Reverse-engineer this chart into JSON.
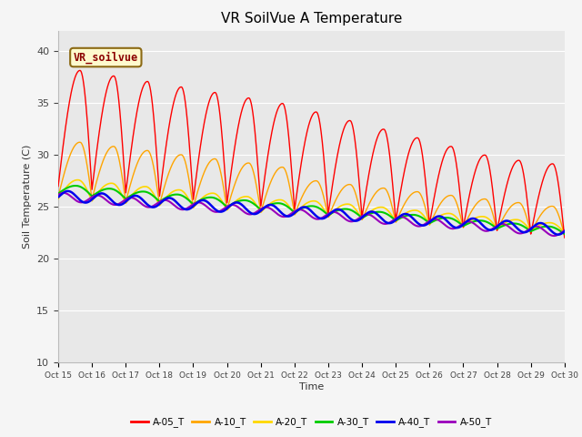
{
  "title": "VR SoilVue A Temperature",
  "ylabel": "Soil Temperature (C)",
  "xlabel": "Time",
  "ylim": [
    10,
    42
  ],
  "yticks": [
    10,
    15,
    20,
    25,
    30,
    35,
    40
  ],
  "annotation_text": "VR_soilvue",
  "annotation_color": "#8B0000",
  "annotation_bg": "#FFFACD",
  "annotation_border": "#8B6914",
  "fig_facecolor": "#F5F5F5",
  "axes_facecolor": "#E8E8E8",
  "colors": {
    "A-05_T": "#FF0000",
    "A-10_T": "#FFA500",
    "A-20_T": "#FFD700",
    "A-30_T": "#00CC00",
    "A-40_T": "#0000EE",
    "A-50_T": "#9900BB"
  },
  "linewidths": {
    "A-05_T": 1.0,
    "A-10_T": 1.0,
    "A-20_T": 1.2,
    "A-30_T": 1.5,
    "A-40_T": 1.8,
    "A-50_T": 1.5
  },
  "x_tick_days": [
    15,
    16,
    17,
    18,
    19,
    20,
    21,
    22,
    23,
    24,
    25,
    26,
    27,
    28,
    29,
    30
  ],
  "x_tick_labels": [
    "Oct 15",
    "Oct 16",
    "Oct 17",
    "Oct 18",
    "Oct 19",
    "Oct 20",
    "Oct 21",
    "Oct 22",
    "Oct 23",
    "Oct 24",
    "Oct 25",
    "Oct 26",
    "Oct 27",
    "Oct 28",
    "Oct 29",
    "Oct 30"
  ]
}
